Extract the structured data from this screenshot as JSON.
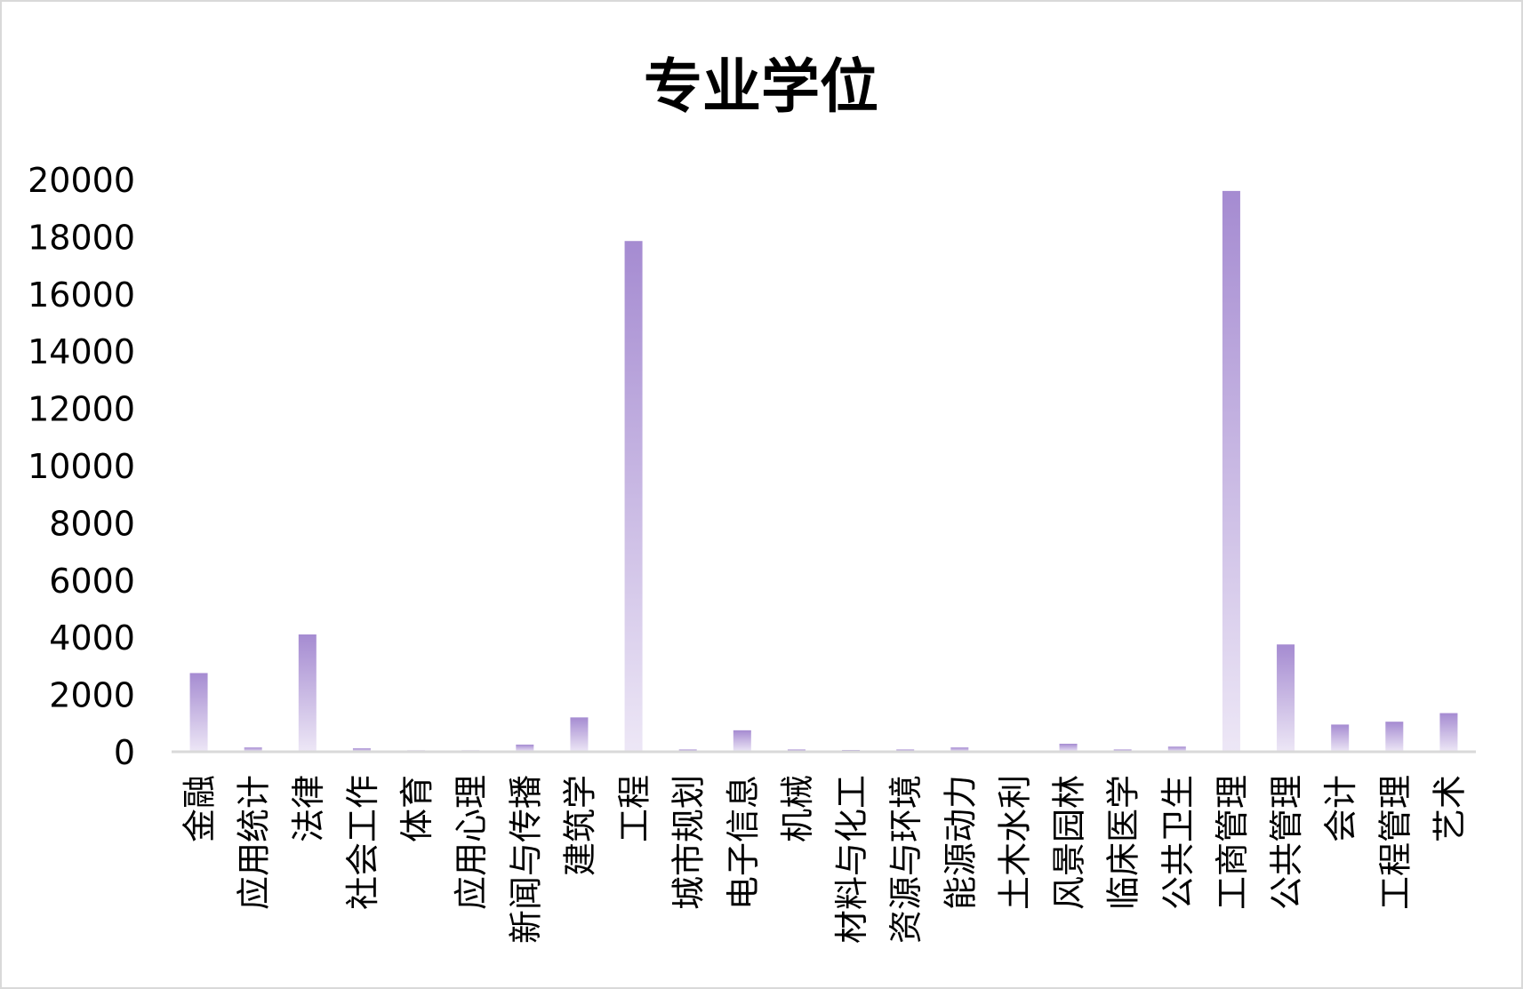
{
  "chart_data": {
    "type": "bar",
    "title": "专业学位",
    "xlabel": "",
    "ylabel": "",
    "ylim": [
      0,
      20000
    ],
    "yticks": [
      "0",
      "2000",
      "4000",
      "6000",
      "8000",
      "10000",
      "12000",
      "14000",
      "16000",
      "18000",
      "20000"
    ],
    "grid": false,
    "legend": "none",
    "categories": [
      "金融",
      "应用统计",
      "法律",
      "社会工作",
      "体育",
      "应用心理",
      "新闻与传播",
      "建筑学",
      "工程",
      "城市规划",
      "电子信息",
      "机械",
      "材料与化工",
      "资源与环境",
      "能源动力",
      "土木水利",
      "风景园林",
      "临床医学",
      "公共卫生",
      "工商管理",
      "公共管理",
      "会计",
      "工程管理",
      "艺术"
    ],
    "values": [
      2750,
      150,
      4100,
      120,
      50,
      50,
      250,
      1200,
      17850,
      80,
      750,
      80,
      60,
      80,
      150,
      0,
      280,
      80,
      180,
      19600,
      3750,
      950,
      1050,
      1350
    ],
    "colors": {
      "bar_top": "#a58bd1",
      "bar_bottom": "#ede7f6",
      "axis": "#d9d9d9"
    }
  }
}
